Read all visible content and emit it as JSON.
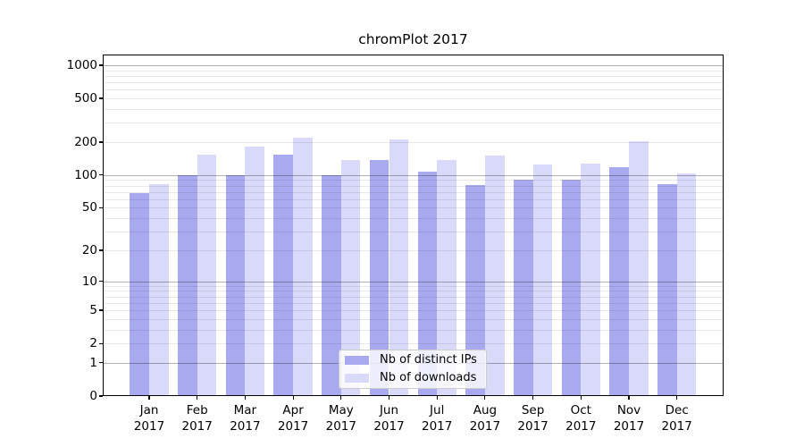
{
  "title": "chromPlot 2017",
  "chart_data": {
    "type": "bar",
    "title": "chromPlot 2017",
    "categories": [
      "Jan 2017",
      "Feb 2017",
      "Mar 2017",
      "Apr 2017",
      "May 2017",
      "Jun 2017",
      "Jul 2017",
      "Aug 2017",
      "Sep 2017",
      "Oct 2017",
      "Nov 2017",
      "Dec 2017"
    ],
    "series": [
      {
        "name": "Nb of distinct IPs",
        "color": "#a9a9f0",
        "values": [
          68,
          100,
          100,
          153,
          100,
          136,
          107,
          81,
          91,
          90,
          119,
          82
        ]
      },
      {
        "name": "Nb of downloads",
        "color": "#d9d9f9",
        "values": [
          83,
          155,
          182,
          220,
          138,
          212,
          138,
          150,
          125,
          127,
          205,
          103
        ]
      }
    ],
    "xlabel": "",
    "ylabel": "",
    "yscale": "log1p",
    "y_ticks": [
      0,
      1,
      2,
      5,
      10,
      20,
      50,
      100,
      200,
      500,
      1000
    ],
    "ylim": [
      0,
      1250
    ],
    "grid": "major-and-minor, drawn above bars",
    "legend_position": "lower center"
  },
  "colors": {
    "background": "#ffffff",
    "spine": "#000000",
    "major_grid": "#b3b3b3",
    "minor_grid": "#e8e8e8",
    "legend_border": "#cccccc"
  }
}
